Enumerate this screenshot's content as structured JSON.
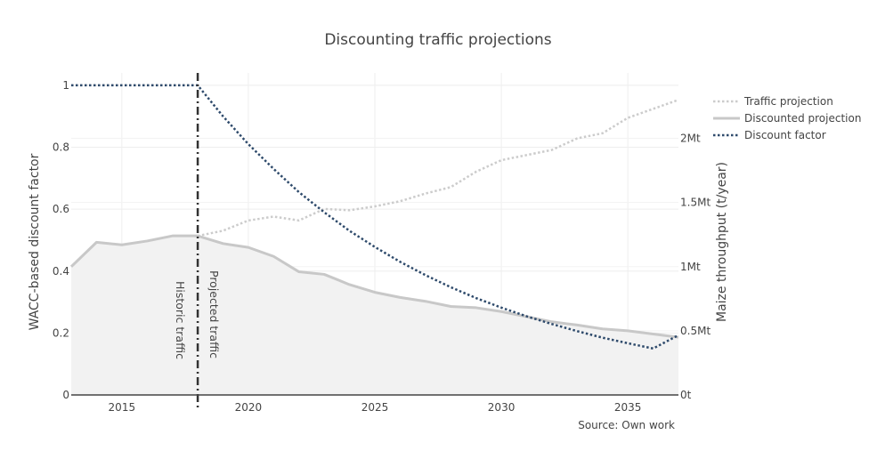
{
  "chart_data": {
    "type": "line",
    "title": "Discounting traffic projections",
    "ylabel": "WACC-based discount factor",
    "y2label": "Maize throughput (t/year)",
    "xlim": [
      2013,
      2037
    ],
    "ylim": [
      0,
      1.04
    ],
    "y2lim": [
      0,
      2510000
    ],
    "xticks": [
      2015,
      2020,
      2025,
      2030,
      2035
    ],
    "yticks": [
      0,
      0.2,
      0.4,
      0.6,
      0.8,
      1
    ],
    "y2ticks": [
      {
        "value": 0,
        "label": "0t"
      },
      {
        "value": 500000,
        "label": "0.5Mt"
      },
      {
        "value": 1000000,
        "label": "1Mt"
      },
      {
        "value": 1500000,
        "label": "1.5Mt"
      },
      {
        "value": 2000000,
        "label": "2Mt"
      }
    ],
    "grid": true,
    "legend_position": "top-right",
    "series": [
      {
        "name": "Traffic projection",
        "axis": "y2",
        "style": "dotted",
        "color": "#cccccc",
        "x": [
          2018,
          2019,
          2020,
          2021,
          2022,
          2023,
          2024,
          2025,
          2026,
          2027,
          2028,
          2029,
          2030,
          2031,
          2032,
          2033,
          2034,
          2035,
          2036,
          2037
        ],
        "values": [
          1240000,
          1280000,
          1360000,
          1390000,
          1360000,
          1450000,
          1440000,
          1470000,
          1510000,
          1570000,
          1620000,
          1740000,
          1830000,
          1870000,
          1910000,
          2000000,
          2040000,
          2160000,
          2230000,
          2300000
        ]
      },
      {
        "name": "Discounted projection",
        "axis": "y2",
        "style": "solid",
        "color": "#c8c8c8",
        "fill": "#f2f2f2",
        "x": [
          2013,
          2014,
          2015,
          2016,
          2017,
          2018,
          2019,
          2020,
          2021,
          2022,
          2023,
          2024,
          2025,
          2026,
          2027,
          2028,
          2029,
          2030,
          2031,
          2032,
          2033,
          2034,
          2035,
          2036,
          2037
        ],
        "values": [
          1000000,
          1190000,
          1170000,
          1200000,
          1240000,
          1240000,
          1180000,
          1150000,
          1080000,
          960000,
          940000,
          860000,
          800000,
          760000,
          730000,
          690000,
          680000,
          650000,
          610000,
          570000,
          545000,
          515000,
          500000,
          475000,
          450000
        ]
      },
      {
        "name": "Discount factor",
        "axis": "y",
        "style": "dotted",
        "color": "#2e4a6b",
        "x": [
          2013,
          2014,
          2015,
          2016,
          2017,
          2018,
          2019,
          2020,
          2021,
          2022,
          2023,
          2024,
          2025,
          2026,
          2027,
          2028,
          2029,
          2030,
          2031,
          2032,
          2033,
          2034,
          2035,
          2036,
          2037
        ],
        "values": [
          1,
          1,
          1,
          1,
          1,
          1,
          0.9,
          0.81,
          0.73,
          0.655,
          0.59,
          0.53,
          0.478,
          0.43,
          0.387,
          0.348,
          0.313,
          0.282,
          0.254,
          0.229,
          0.206,
          0.185,
          0.167,
          0.15,
          0.193
        ]
      }
    ],
    "divider": {
      "x": 2018,
      "left_label": "Historic traffic",
      "right_label": "Projected traffic"
    },
    "source": "Source: Own work"
  }
}
